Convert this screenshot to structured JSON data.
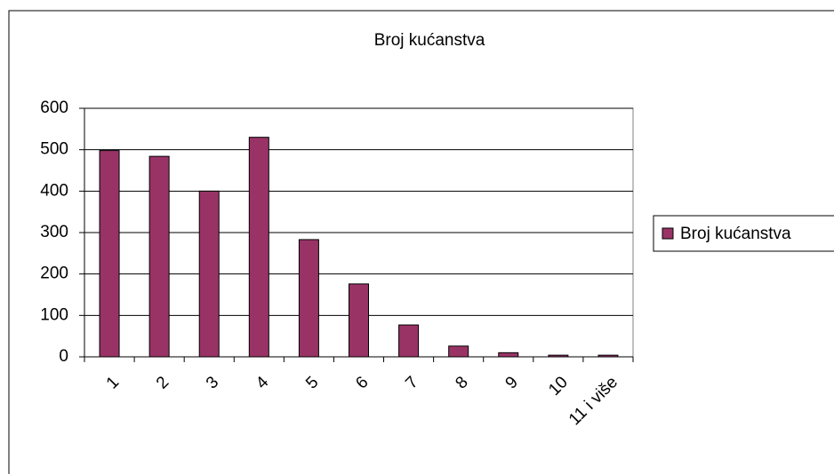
{
  "chart_data": {
    "type": "bar",
    "title": "Broj kućanstva",
    "categories": [
      "1",
      "2",
      "3",
      "4",
      "5",
      "6",
      "7",
      "8",
      "9",
      "10",
      "11 i više"
    ],
    "series": [
      {
        "name": "Broj kućanstva",
        "color": "#993366",
        "values": [
          498,
          484,
          400,
          530,
          283,
          176,
          77,
          26,
          10,
          4,
          4
        ]
      }
    ],
    "ylim": [
      0,
      600
    ],
    "yticks": [
      0,
      100,
      200,
      300,
      400,
      500,
      600
    ],
    "grid": true,
    "legend": "right"
  }
}
